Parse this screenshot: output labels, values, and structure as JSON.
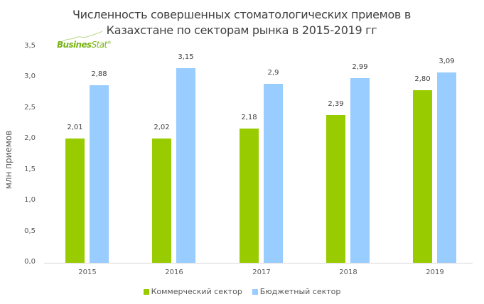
{
  "title_line1": "Численность совершенных стоматологических приемов в",
  "title_line2": "Казахстане по секторам рынка в 2015-2019 гг",
  "logo": {
    "text_bold": "Busines",
    "text_light": "Stat",
    "mark": "®",
    "icon": "mountain-swoosh-icon"
  },
  "colors": {
    "commercial": "#99cc00",
    "budget": "#99ccff"
  },
  "chart_data": {
    "type": "bar",
    "title": "Численность совершенных стоматологических приемов в Казахстане по секторам рынка в 2015-2019 гг",
    "xlabel": "",
    "ylabel": "млн приемов",
    "categories": [
      "2015",
      "2016",
      "2017",
      "2018",
      "2019"
    ],
    "series": [
      {
        "name": "Коммерческий сектор",
        "values": [
          2.01,
          2.02,
          2.18,
          2.39,
          2.8
        ],
        "labels": [
          "2,01",
          "2,02",
          "2,18",
          "2,39",
          "2,80"
        ],
        "color": "#99cc00"
      },
      {
        "name": "Бюджетный сектор",
        "values": [
          2.88,
          3.15,
          2.9,
          2.99,
          3.09
        ],
        "labels": [
          "2,88",
          "3,15",
          "2,9",
          "2,99",
          "3,09"
        ],
        "color": "#99ccff"
      }
    ],
    "ylim": [
      0,
      3.5
    ],
    "yticks": [
      "0,0",
      "0,5",
      "1,0",
      "1,5",
      "2,0",
      "2,5",
      "3,0",
      "3,5"
    ],
    "grid": false,
    "legend_position": "bottom"
  }
}
